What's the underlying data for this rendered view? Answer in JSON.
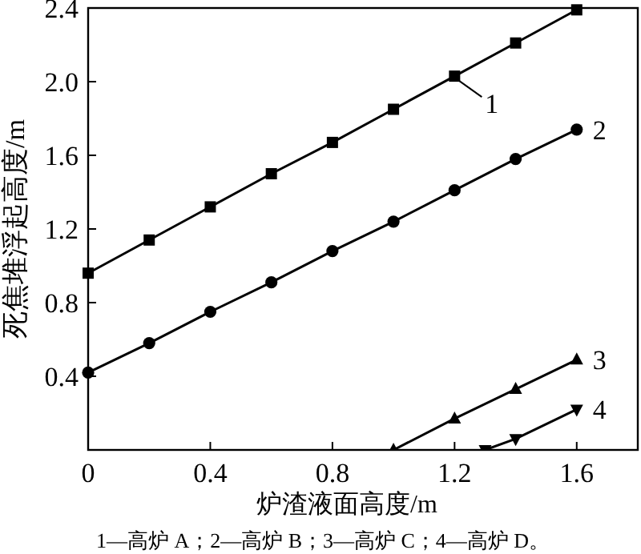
{
  "chart_data": {
    "type": "line",
    "xlabel": "炉渣液面高度/m",
    "ylabel": "死焦堆浮起高度/m",
    "xlim": [
      0,
      1.8
    ],
    "ylim": [
      0,
      2.4
    ],
    "xticks": [
      0,
      0.4,
      0.8,
      1.2,
      1.6
    ],
    "yticks": [
      0.4,
      0.8,
      1.2,
      1.6,
      {
        "value": 2.0,
        "label": "2.0"
      },
      2.4
    ],
    "grid": false,
    "line_style": "solid",
    "series": [
      {
        "name": "1",
        "color": "#000000",
        "marker": "square",
        "x": [
          0,
          0.2,
          0.4,
          0.6,
          0.8,
          1.0,
          1.2,
          1.4,
          1.6
        ],
        "values": [
          0.96,
          1.14,
          1.32,
          1.5,
          1.67,
          1.85,
          2.03,
          2.21,
          2.39
        ]
      },
      {
        "name": "2",
        "color": "#000000",
        "marker": "circle",
        "x": [
          0,
          0.2,
          0.4,
          0.6,
          0.8,
          1.0,
          1.2,
          1.4,
          1.6
        ],
        "values": [
          0.42,
          0.58,
          0.75,
          0.91,
          1.08,
          1.24,
          1.41,
          1.58,
          1.74
        ]
      },
      {
        "name": "3",
        "color": "#000000",
        "marker": "triangle",
        "x": [
          1.0,
          1.2,
          1.4,
          1.6
        ],
        "values": [
          0,
          0.17,
          0.33,
          0.49
        ]
      },
      {
        "name": "4",
        "color": "#000000",
        "marker": "triangle_down",
        "x": [
          1.3,
          1.4,
          1.6
        ],
        "values": [
          0,
          0.06,
          0.22
        ]
      }
    ],
    "annotations": [
      "1—高炉 A；2—高炉 B；3—高炉 C；4—高炉 D。"
    ]
  }
}
